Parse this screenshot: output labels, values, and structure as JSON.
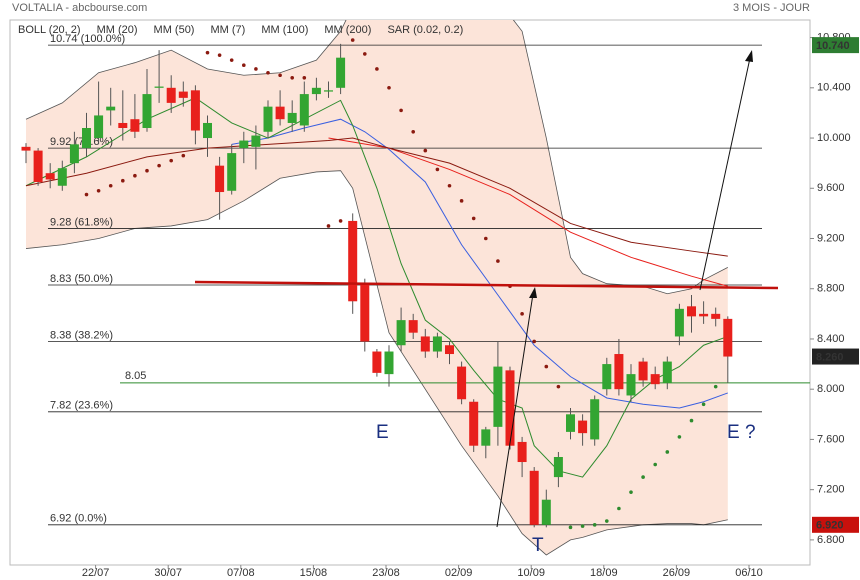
{
  "chart_data": {
    "type": "candlestick",
    "header_left": "VOLTALIA - abcbourse.com",
    "header_right": "3 MOIS - JOUR",
    "categories": [
      null,
      null,
      null,
      null,
      null,
      null,
      "22/07",
      null,
      null,
      null,
      null,
      null,
      "30/07",
      null,
      null,
      null,
      null,
      null,
      "07/08",
      null,
      null,
      null,
      null,
      null,
      "15/08",
      null,
      null,
      null,
      null,
      null,
      "23/08",
      null,
      null,
      null,
      null,
      null,
      "02/09",
      null,
      null,
      null,
      null,
      null,
      "10/09",
      null,
      null,
      null,
      null,
      null,
      "18/09",
      null,
      null,
      null,
      null,
      null,
      "26/09",
      null,
      null,
      null,
      null,
      null,
      "06/10"
    ],
    "open": [
      9.93,
      9.9,
      9.72,
      9.62,
      9.8,
      9.92,
      10.0,
      10.22,
      10.12,
      10.15,
      10.08,
      10.4,
      10.4,
      10.37,
      10.38,
      10.0,
      9.78,
      9.58,
      9.92,
      9.93,
      10.05,
      10.25,
      10.12,
      10.1,
      10.35,
      10.37,
      10.4,
      9.34,
      8.84,
      8.3,
      8.12,
      8.35,
      8.55,
      8.42,
      8.3,
      8.35,
      8.18,
      7.9,
      7.55,
      7.7,
      8.15,
      7.58,
      7.35,
      6.92,
      7.3,
      7.66,
      7.75,
      7.6,
      8.0,
      8.28,
      7.95,
      8.22,
      8.12,
      8.05,
      8.42,
      8.66,
      8.6,
      8.6,
      8.56,
      null,
      null
    ],
    "high": [
      9.96,
      9.92,
      9.8,
      9.82,
      10.05,
      10.2,
      10.45,
      10.4,
      10.38,
      10.35,
      10.55,
      10.7,
      10.5,
      10.45,
      10.42,
      10.18,
      9.85,
      9.95,
      10.05,
      10.1,
      10.3,
      10.38,
      10.3,
      10.45,
      10.48,
      10.45,
      10.75,
      9.4,
      8.88,
      8.32,
      8.35,
      8.65,
      8.6,
      8.48,
      8.45,
      8.38,
      8.22,
      7.92,
      7.7,
      8.38,
      8.18,
      7.62,
      7.38,
      7.2,
      7.5,
      7.85,
      7.8,
      7.95,
      8.25,
      8.4,
      8.2,
      8.25,
      8.18,
      8.26,
      8.68,
      8.75,
      8.7,
      8.65,
      8.58,
      null,
      null
    ],
    "low": [
      9.8,
      9.62,
      9.6,
      9.58,
      9.72,
      9.85,
      9.95,
      10.1,
      9.98,
      10.0,
      10.05,
      10.28,
      10.2,
      10.25,
      9.95,
      9.85,
      9.35,
      9.55,
      9.8,
      9.75,
      10.0,
      10.1,
      10.05,
      10.05,
      10.3,
      10.32,
      10.35,
      8.6,
      8.3,
      8.1,
      8.02,
      8.3,
      8.4,
      8.25,
      8.25,
      8.2,
      7.88,
      7.5,
      7.45,
      7.55,
      7.52,
      7.3,
      6.9,
      6.9,
      7.22,
      7.6,
      7.55,
      7.55,
      7.95,
      7.95,
      7.9,
      8.02,
      8.0,
      8.0,
      8.35,
      8.45,
      8.52,
      8.5,
      8.05,
      null,
      null
    ],
    "close": [
      9.9,
      9.65,
      9.67,
      9.76,
      9.95,
      10.08,
      10.18,
      10.25,
      10.08,
      10.05,
      10.35,
      10.41,
      10.28,
      10.32,
      10.06,
      10.12,
      9.57,
      9.88,
      9.98,
      10.02,
      10.25,
      10.15,
      10.2,
      10.35,
      10.4,
      10.38,
      10.64,
      8.7,
      8.38,
      8.13,
      8.3,
      8.55,
      8.45,
      8.3,
      8.42,
      8.28,
      7.92,
      7.55,
      7.68,
      8.18,
      7.55,
      7.42,
      6.92,
      7.12,
      7.46,
      7.8,
      7.65,
      7.92,
      8.2,
      8.0,
      8.12,
      8.07,
      8.04,
      8.22,
      8.64,
      8.58,
      8.58,
      8.56,
      8.26,
      null,
      null
    ],
    "up_color": "#33a532",
    "down_color": "#e8201c",
    "ylim": [
      6.6,
      10.94
    ],
    "yticks": [
      {
        "value": 6.8,
        "label": "6.800"
      },
      {
        "value": 7.2,
        "label": "7.200"
      },
      {
        "value": 7.6,
        "label": "7.600"
      },
      {
        "value": 8.0,
        "label": "8.000"
      },
      {
        "value": 8.4,
        "label": "8.400"
      },
      {
        "value": 8.8,
        "label": "8.800"
      },
      {
        "value": 9.2,
        "label": "9.200"
      },
      {
        "value": 9.6,
        "label": "9.600"
      },
      {
        "value": 10.0,
        "label": "10.000"
      },
      {
        "value": 10.4,
        "label": "10.400"
      },
      {
        "value": 10.8,
        "label": "10.800"
      }
    ],
    "bollinger": {
      "name": "BOLL (20, 2)",
      "color": "#555555",
      "fill": "#fce4d9",
      "x": [
        0,
        3,
        6,
        9,
        12,
        15,
        18,
        21,
        24,
        26,
        27,
        30,
        36,
        39,
        41,
        43,
        45,
        46,
        48,
        51,
        53,
        55,
        56,
        58
      ],
      "upper": [
        10.15,
        10.28,
        10.52,
        10.6,
        10.7,
        10.55,
        10.5,
        10.52,
        10.62,
        10.85,
        11.05,
        11.4,
        11.3,
        11.1,
        10.85,
        10.0,
        9.05,
        8.92,
        8.84,
        8.82,
        8.76,
        8.8,
        8.87,
        8.97
      ],
      "lower": [
        9.12,
        9.15,
        9.2,
        9.28,
        9.3,
        9.35,
        9.5,
        9.68,
        9.73,
        9.74,
        9.6,
        8.45,
        7.55,
        7.15,
        6.85,
        6.68,
        6.8,
        6.82,
        6.88,
        6.92,
        6.93,
        6.93,
        6.92,
        6.96
      ]
    },
    "series": [
      {
        "name": "MM (20)",
        "color": "#3a5fe0",
        "x": [
          17,
          20,
          23,
          26,
          28,
          30,
          33,
          36,
          39,
          42,
          45,
          48,
          51,
          54,
          56,
          58
        ],
        "values": [
          9.95,
          10.0,
          10.08,
          10.15,
          10.05,
          9.91,
          9.65,
          9.15,
          8.75,
          8.35,
          8.1,
          7.93,
          7.88,
          7.85,
          7.9,
          7.97
        ]
      },
      {
        "name": "MM (50)",
        "color": "#e8201c",
        "x": [
          25,
          30,
          35,
          40,
          45,
          50,
          55,
          58
        ],
        "values": [
          10.0,
          9.92,
          9.75,
          9.55,
          9.25,
          9.05,
          8.9,
          8.82
        ]
      },
      {
        "name": "MM (7)",
        "color": "#2e8b2e",
        "x": [
          0,
          5,
          10,
          14,
          17,
          20,
          23,
          26,
          27,
          29,
          31,
          33,
          35,
          37,
          39,
          41,
          42,
          44,
          46,
          48,
          50,
          52,
          54,
          56,
          58
        ],
        "values": [
          9.62,
          9.85,
          10.15,
          10.32,
          10.12,
          10.0,
          10.15,
          10.3,
          10.1,
          9.6,
          9.0,
          8.55,
          8.4,
          8.15,
          7.92,
          7.85,
          7.55,
          7.35,
          7.3,
          7.55,
          7.92,
          8.08,
          8.18,
          8.35,
          8.42
        ]
      },
      {
        "name": "MM (100)",
        "color": "#f07a10",
        "x": [],
        "values": []
      },
      {
        "name": "MM (200)",
        "color": "#8b1a10",
        "x": [
          0,
          5,
          10,
          15,
          20,
          25,
          27,
          30,
          35,
          40,
          45,
          50,
          55,
          58
        ],
        "values": [
          9.62,
          9.72,
          9.85,
          9.92,
          9.95,
          9.98,
          10.0,
          9.92,
          9.8,
          9.6,
          9.32,
          9.17,
          9.1,
          9.06
        ]
      }
    ],
    "sar": {
      "name": "SAR (0.02, 0.2)",
      "color": "#8b1a10",
      "x": [
        5,
        6,
        7,
        8,
        9,
        10,
        11,
        12,
        13,
        15,
        16,
        17,
        18,
        19,
        20,
        21,
        22,
        23,
        25,
        26,
        27,
        28,
        29,
        30,
        31,
        32,
        33,
        34,
        35,
        36,
        37,
        38,
        39,
        40,
        41,
        42,
        43,
        44,
        45,
        46,
        47,
        48,
        49,
        50,
        51,
        52,
        53,
        54,
        55,
        56,
        57
      ],
      "values": [
        9.55,
        9.58,
        9.62,
        9.66,
        9.7,
        9.74,
        9.78,
        9.82,
        9.86,
        10.68,
        10.66,
        10.62,
        10.58,
        10.55,
        10.52,
        10.5,
        10.48,
        10.48,
        9.3,
        9.34,
        10.78,
        10.67,
        10.55,
        10.4,
        10.22,
        10.05,
        9.9,
        9.75,
        9.62,
        9.5,
        9.36,
        9.2,
        9.02,
        8.82,
        8.6,
        8.38,
        8.18,
        8.02,
        6.9,
        6.91,
        6.92,
        6.95,
        7.05,
        7.18,
        7.3,
        7.4,
        7.5,
        7.62,
        7.75,
        7.88,
        8.02
      ]
    },
    "levels": [
      {
        "value": 10.74,
        "label": "10.74  (100.0%)"
      },
      {
        "value": 9.92,
        "label": "9.92  (78.6%)"
      },
      {
        "value": 9.28,
        "label": "9.28  (61.8%)"
      },
      {
        "value": 8.83,
        "label": "8.83  (50.0%)"
      },
      {
        "value": 8.38,
        "label": "8.38  (38.2%)"
      },
      {
        "value": 7.82,
        "label": "7.82  (23.6%)"
      },
      {
        "value": 6.92,
        "label": "6.92  (0.0%)"
      }
    ],
    "support": {
      "value": 8.05,
      "label": "8.05",
      "color": "#2e8b2e"
    },
    "price_tags": [
      {
        "value": 10.74,
        "label": "10.740",
        "color": "#2e7d32"
      },
      {
        "value": 8.26,
        "label": "8.260",
        "color": "#222222"
      },
      {
        "value": 6.92,
        "label": "6.920",
        "color": "#c8100c"
      }
    ],
    "annotations": [
      "E",
      "E ?",
      "T"
    ]
  }
}
